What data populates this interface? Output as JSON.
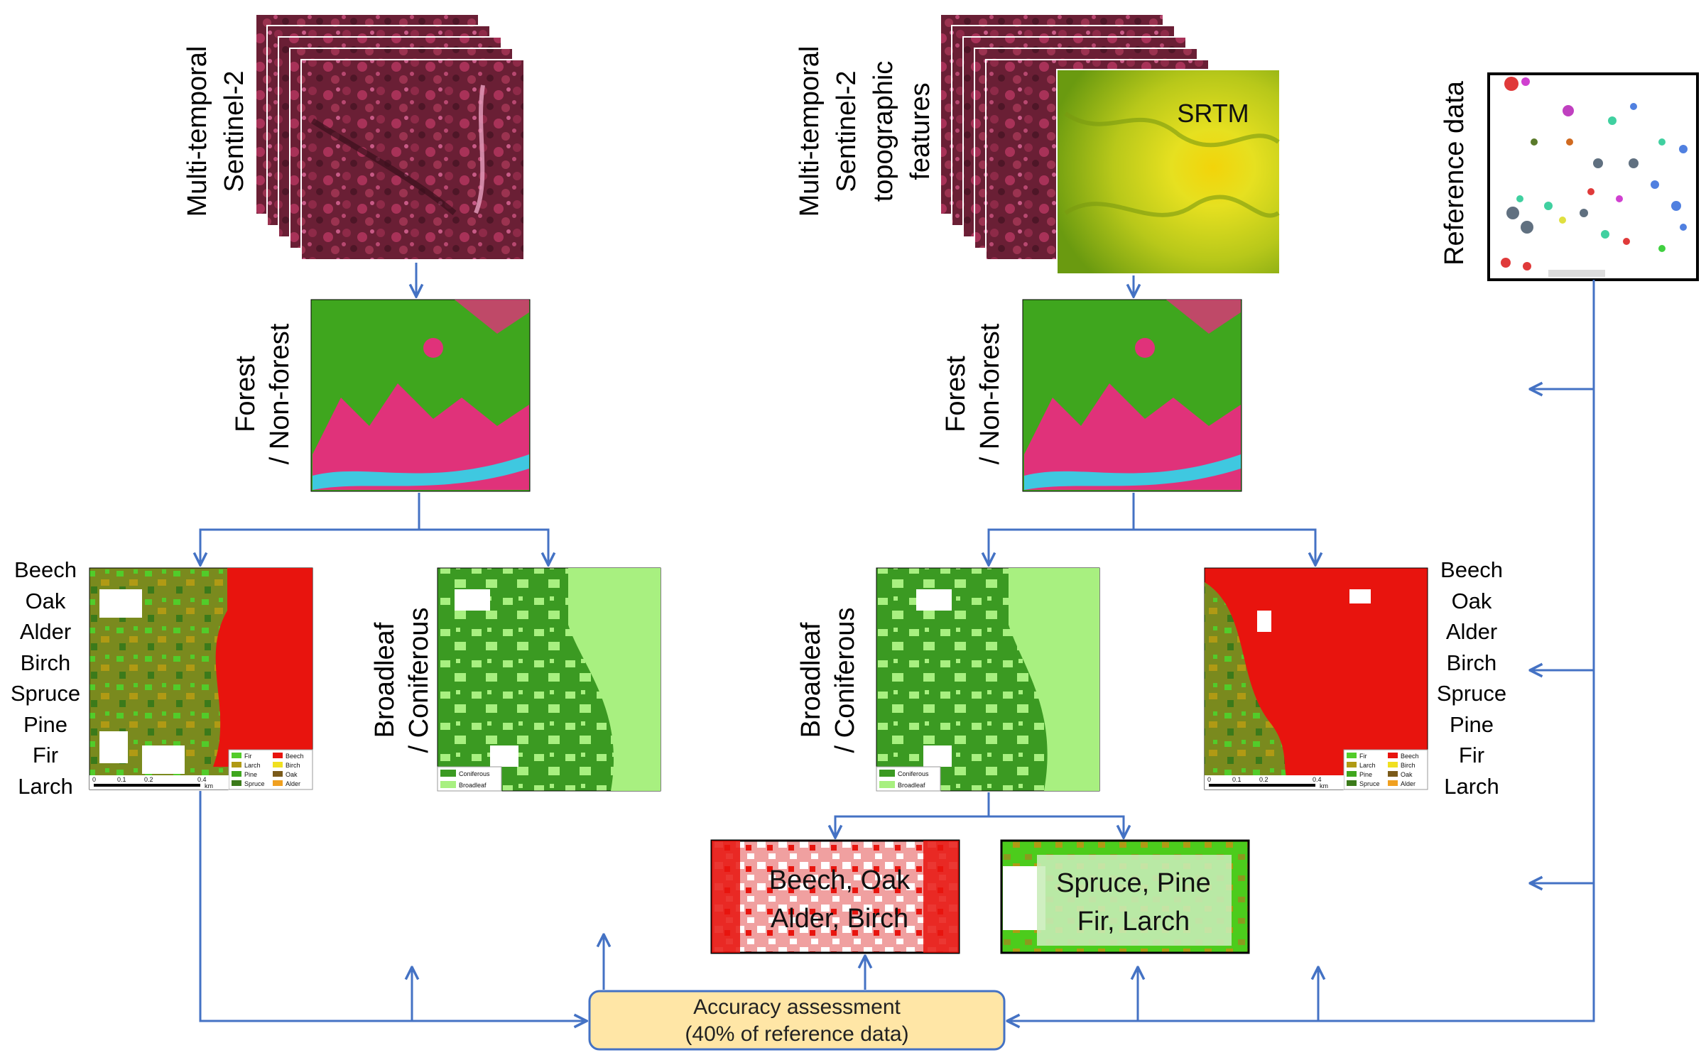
{
  "left_pipeline": {
    "input_label_line1": "Multi-temporal",
    "input_label_line2": "Sentinel-2",
    "forest_label_line1": "Forest",
    "forest_label_line2": "/ Non-forest",
    "bc_label_line1": "Broadleaf",
    "bc_label_line2": "/ Coniferous",
    "species_labels": [
      "Beech",
      "Oak",
      "Alder",
      "Birch",
      "Spruce",
      "Pine",
      "Fir",
      "Larch"
    ],
    "species_legend": [
      "Fir",
      "Beech",
      "Larch",
      "Birch",
      "Pine",
      "Oak",
      "Spruce",
      "Alder"
    ],
    "bc_legend": [
      "Coniferous",
      "Broadleaf"
    ],
    "scale_ticks": [
      "0",
      "0.1",
      "0.2",
      "0.4"
    ],
    "scale_unit": "km"
  },
  "right_pipeline": {
    "input_label_line1": "Multi-temporal",
    "input_label_line2": "Sentinel-2",
    "input_label_line3": "topographic",
    "input_label_line4": "features",
    "srtm_label": "SRTM",
    "forest_label_line1": "Forest",
    "forest_label_line2": "/ Non-forest",
    "bc_label_line1": "Broadleaf",
    "bc_label_line2": "/ Coniferous",
    "species_labels": [
      "Beech",
      "Oak",
      "Alder",
      "Birch",
      "Spruce",
      "Pine",
      "Fir",
      "Larch"
    ],
    "species_legend": [
      "Fir",
      "Beech",
      "Larch",
      "Birch",
      "Pine",
      "Oak",
      "Spruce",
      "Alder"
    ],
    "bc_legend": [
      "Coniferous",
      "Broadleaf"
    ],
    "scale_ticks": [
      "0",
      "0.1",
      "0.2",
      "0.4"
    ],
    "scale_unit": "km",
    "broadleaf_box_line1": "Beech, Oak",
    "broadleaf_box_line2": "Alder, Birch",
    "conifer_box_line1": "Spruce, Pine",
    "conifer_box_line2": "Fir, Larch"
  },
  "reference": {
    "label": "Reference data"
  },
  "accuracy": {
    "line1": "Accuracy assessment",
    "line2": "(40% of reference data)"
  },
  "colors": {
    "arrow": "#4472C4",
    "forest_green": "#3FA61E",
    "light_green": "#A8F080",
    "dark_green": "#3B8F22",
    "nonforest_pink": "#E0327A",
    "sentinel_dark": "#6A1F35",
    "beech_red": "#E8140E",
    "olive": "#7A8A1E",
    "tan": "#B09A14",
    "accuracy_fill": "#FFE6A6",
    "accuracy_border": "#4472C4"
  }
}
